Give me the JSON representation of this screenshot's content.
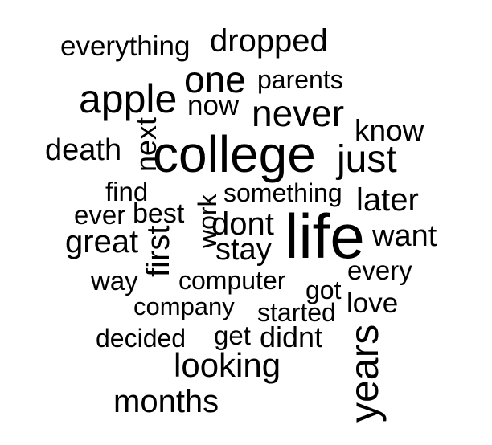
{
  "words": {
    "life": "life",
    "college": "college",
    "years": "years",
    "apple": "apple",
    "never": "never",
    "one": "one",
    "dropped": "dropped",
    "months": "months",
    "just": "just",
    "looking": "looking",
    "dont": "dont",
    "later": "later",
    "want": "want",
    "know": "know",
    "great": "great",
    "everything": "everything",
    "parents": "parents",
    "now": "now",
    "death": "death",
    "next": "next",
    "love": "love",
    "first": "first",
    "stay": "stay",
    "something": "something",
    "computer": "computer",
    "company": "company",
    "started": "started",
    "didnt": "didnt",
    "decided": "decided",
    "get": "get",
    "got": "got",
    "every": "every",
    "find": "find",
    "best": "best",
    "ever": "ever",
    "way": "way",
    "work": "work"
  },
  "colors": {
    "text": "#000000",
    "background": "#ffffff"
  }
}
